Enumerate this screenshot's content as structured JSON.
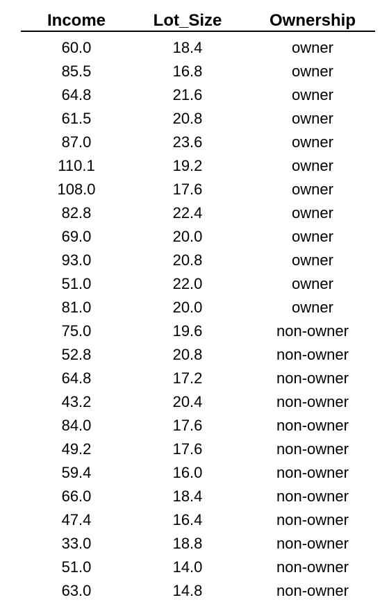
{
  "table": {
    "columns": [
      "Income",
      "Lot_Size",
      "Ownership"
    ],
    "rows": [
      [
        "60.0",
        "18.4",
        "owner"
      ],
      [
        "85.5",
        "16.8",
        "owner"
      ],
      [
        "64.8",
        "21.6",
        "owner"
      ],
      [
        "61.5",
        "20.8",
        "owner"
      ],
      [
        "87.0",
        "23.6",
        "owner"
      ],
      [
        "110.1",
        "19.2",
        "owner"
      ],
      [
        "108.0",
        "17.6",
        "owner"
      ],
      [
        "82.8",
        "22.4",
        "owner"
      ],
      [
        "69.0",
        "20.0",
        "owner"
      ],
      [
        "93.0",
        "20.8",
        "owner"
      ],
      [
        "51.0",
        "22.0",
        "owner"
      ],
      [
        "81.0",
        "20.0",
        "owner"
      ],
      [
        "75.0",
        "19.6",
        "non-owner"
      ],
      [
        "52.8",
        "20.8",
        "non-owner"
      ],
      [
        "64.8",
        "17.2",
        "non-owner"
      ],
      [
        "43.2",
        "20.4",
        "non-owner"
      ],
      [
        "84.0",
        "17.6",
        "non-owner"
      ],
      [
        "49.2",
        "17.6",
        "non-owner"
      ],
      [
        "59.4",
        "16.0",
        "non-owner"
      ],
      [
        "66.0",
        "18.4",
        "non-owner"
      ],
      [
        "47.4",
        "16.4",
        "non-owner"
      ],
      [
        "33.0",
        "18.8",
        "non-owner"
      ],
      [
        "51.0",
        "14.0",
        "non-owner"
      ],
      [
        "63.0",
        "14.8",
        "non-owner"
      ]
    ]
  }
}
